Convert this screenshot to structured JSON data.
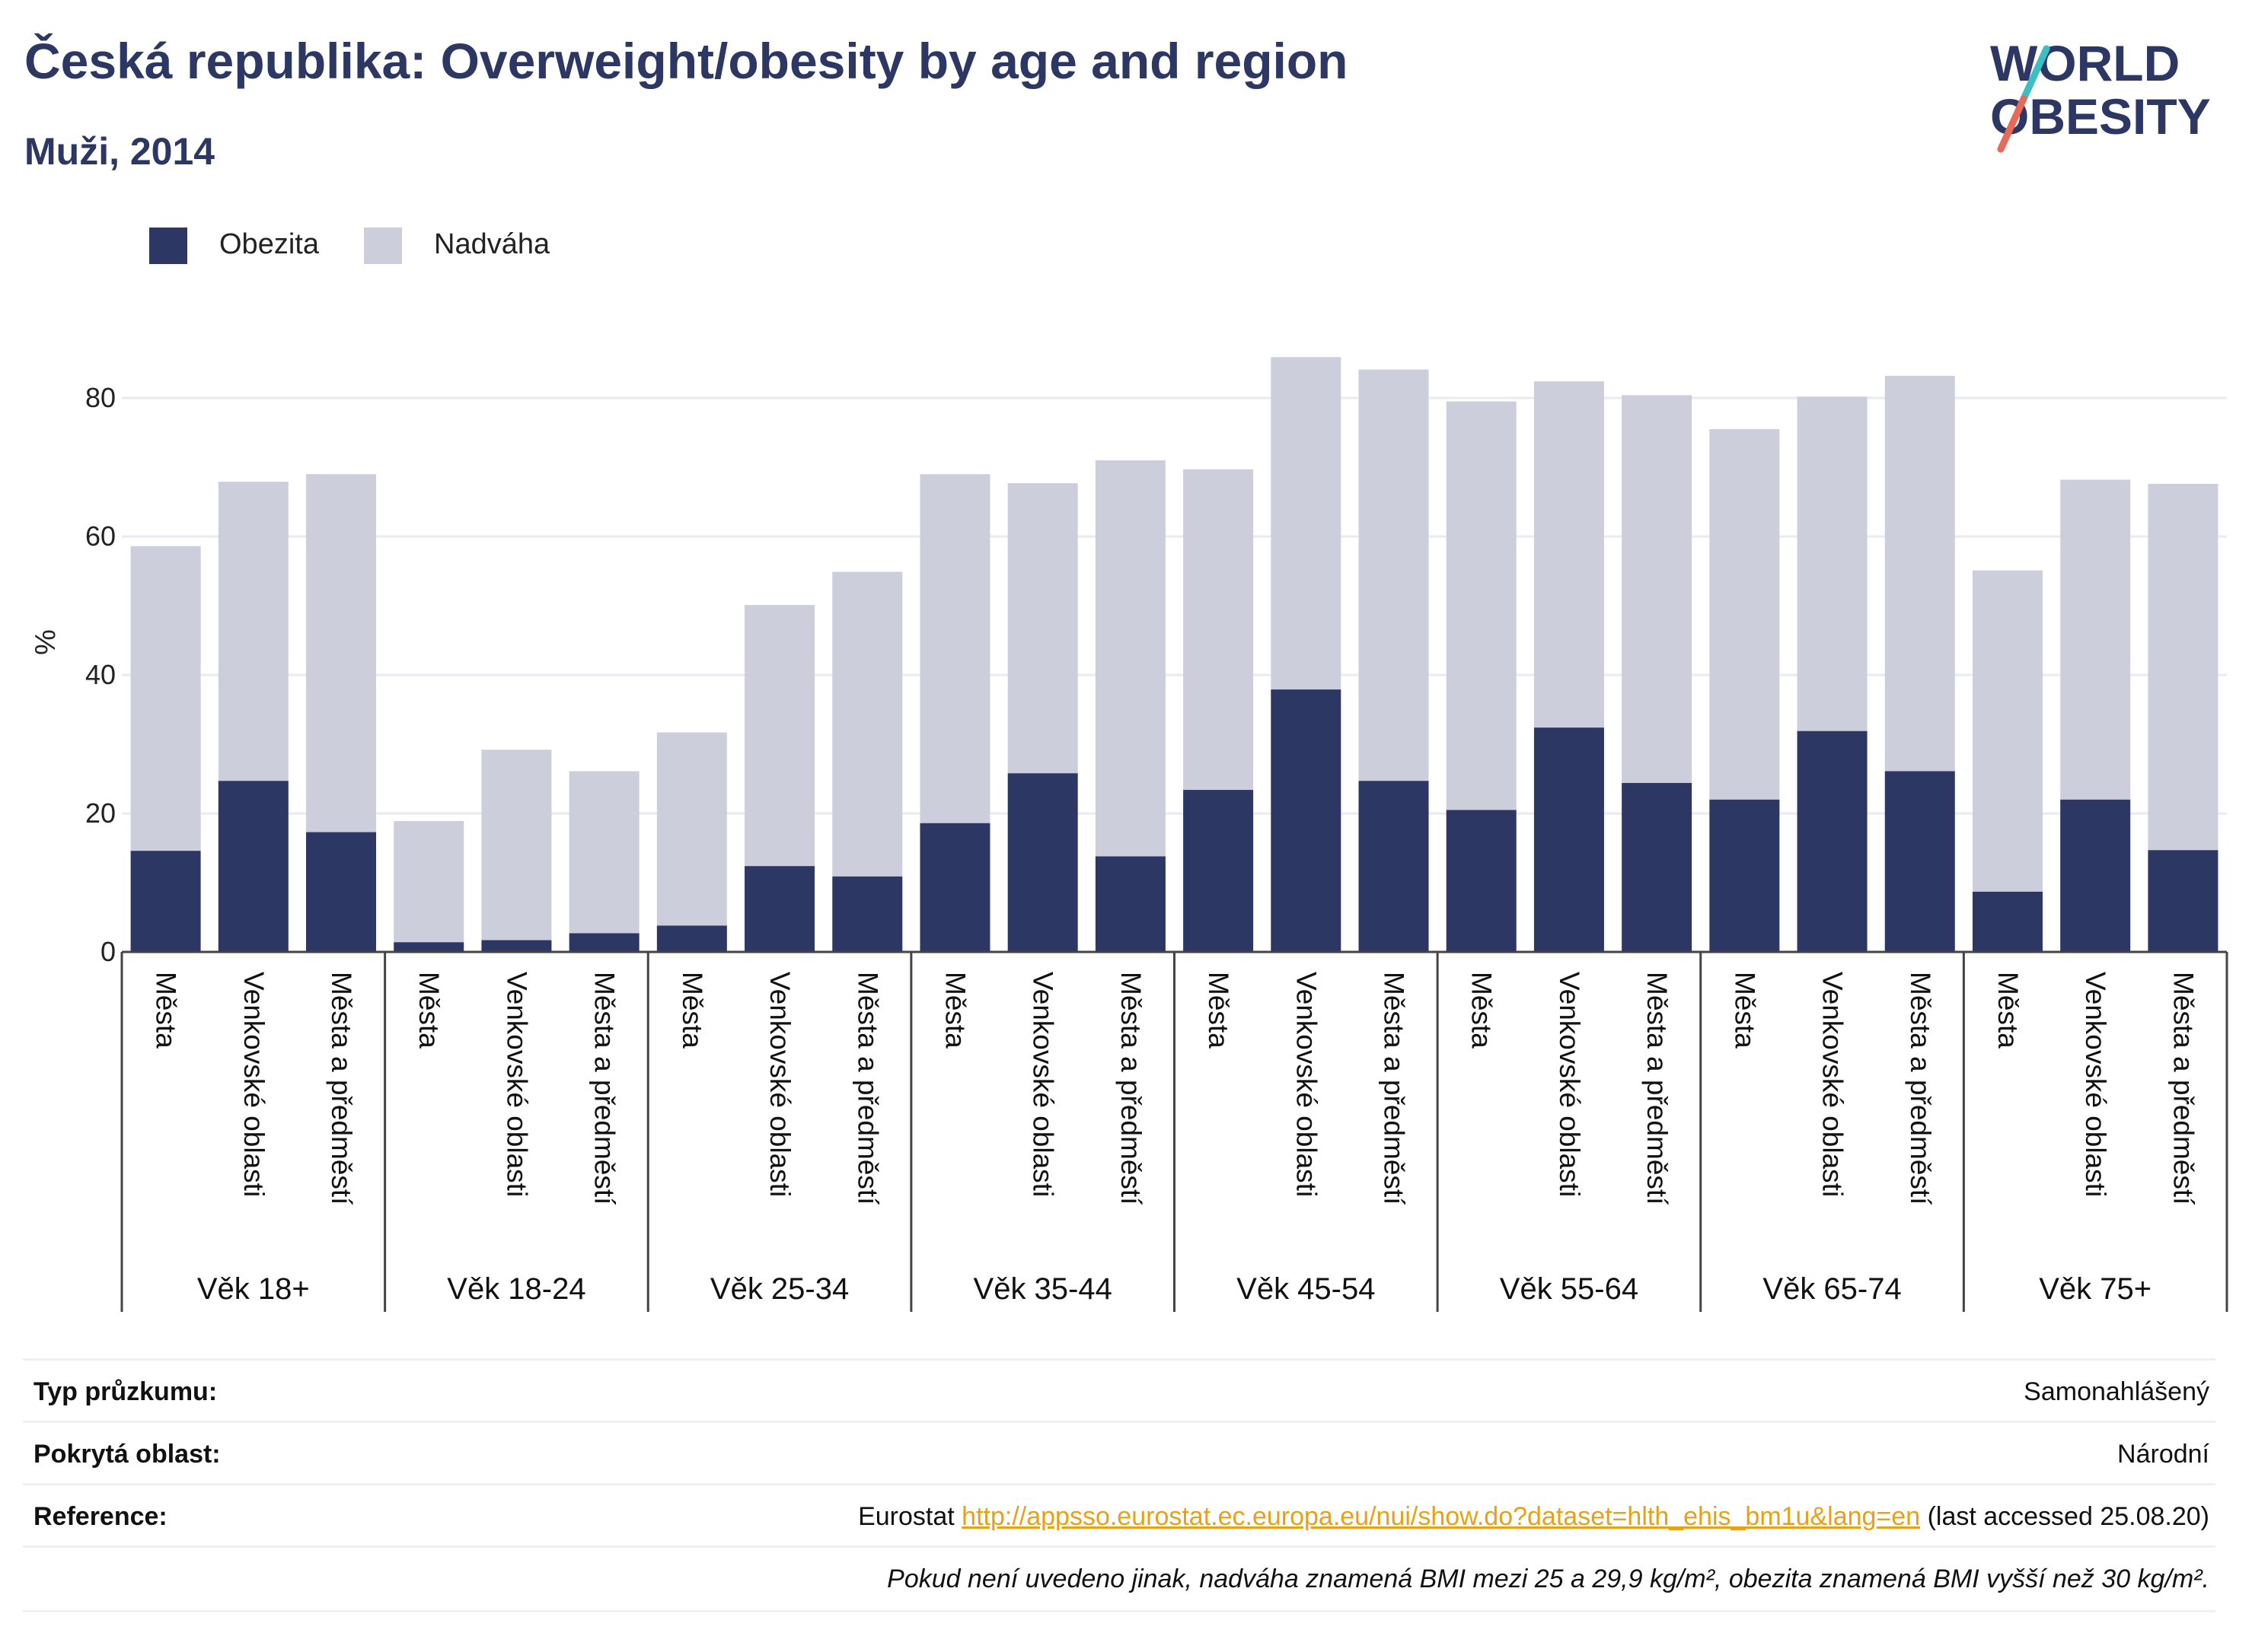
{
  "header": {
    "title": "Česká republika: Overweight/obesity by age and region",
    "subtitle": "Muži, 2014"
  },
  "logo": {
    "line1": "WORLD",
    "line2": "OBESITY"
  },
  "colors": {
    "obezita": "#2c3763",
    "nadvaha": "#cccfdb",
    "grid": "#e9ebf0",
    "axis": "#444444",
    "link": "#e8a117"
  },
  "legend": [
    {
      "label": "Obezita",
      "color": "#2c3763"
    },
    {
      "label": "Nadváha",
      "color": "#cccfdb"
    }
  ],
  "chart_data": {
    "type": "bar",
    "stacked": true,
    "ylabel": "%",
    "ylim": [
      0,
      90
    ],
    "yticks": [
      0,
      20,
      40,
      60,
      80
    ],
    "grid": true,
    "legend_position": "top-left",
    "groups": [
      "Věk 18+",
      "Věk 18-24",
      "Věk 25-34",
      "Věk 35-44",
      "Věk 45-54",
      "Věk 55-64",
      "Věk 65-74",
      "Věk 75+"
    ],
    "subcategories": [
      "Města",
      "Venkovské oblasti",
      "Města a předměstí"
    ],
    "series": [
      {
        "name": "Obezita",
        "values": [
          14.6,
          24.7,
          17.3,
          1.4,
          1.7,
          2.7,
          3.8,
          12.4,
          10.9,
          18.6,
          25.8,
          13.8,
          23.4,
          37.9,
          24.7,
          20.5,
          32.4,
          24.4,
          22.0,
          31.9,
          26.1,
          8.7,
          22.0,
          14.7
        ]
      },
      {
        "name": "Nadváha",
        "values": [
          44.0,
          43.2,
          51.7,
          17.5,
          27.5,
          23.4,
          27.9,
          37.7,
          44.0,
          50.4,
          41.9,
          57.2,
          46.3,
          48.0,
          59.4,
          59.0,
          50.0,
          56.0,
          53.5,
          48.3,
          57.1,
          46.4,
          46.2,
          52.9
        ]
      }
    ]
  },
  "info": {
    "survey_label": "Typ průzkumu:",
    "survey_value": "Samonahlášený",
    "coverage_label": "Pokrytá oblast:",
    "coverage_value": "Národní",
    "reference_label": "Reference:",
    "reference_prefix": "Eurostat",
    "reference_link": "http://appsso.eurostat.ec.europa.eu/nui/show.do?dataset=hlth_ehis_bm1u&lang=en",
    "reference_suffix": "(last accessed 25.08.20)",
    "note": "Pokud není uvedeno jinak, nadváha znamená BMI mezi 25 a 29,9 kg/m², obezita znamená BMI vyšší než 30 kg/m²."
  }
}
